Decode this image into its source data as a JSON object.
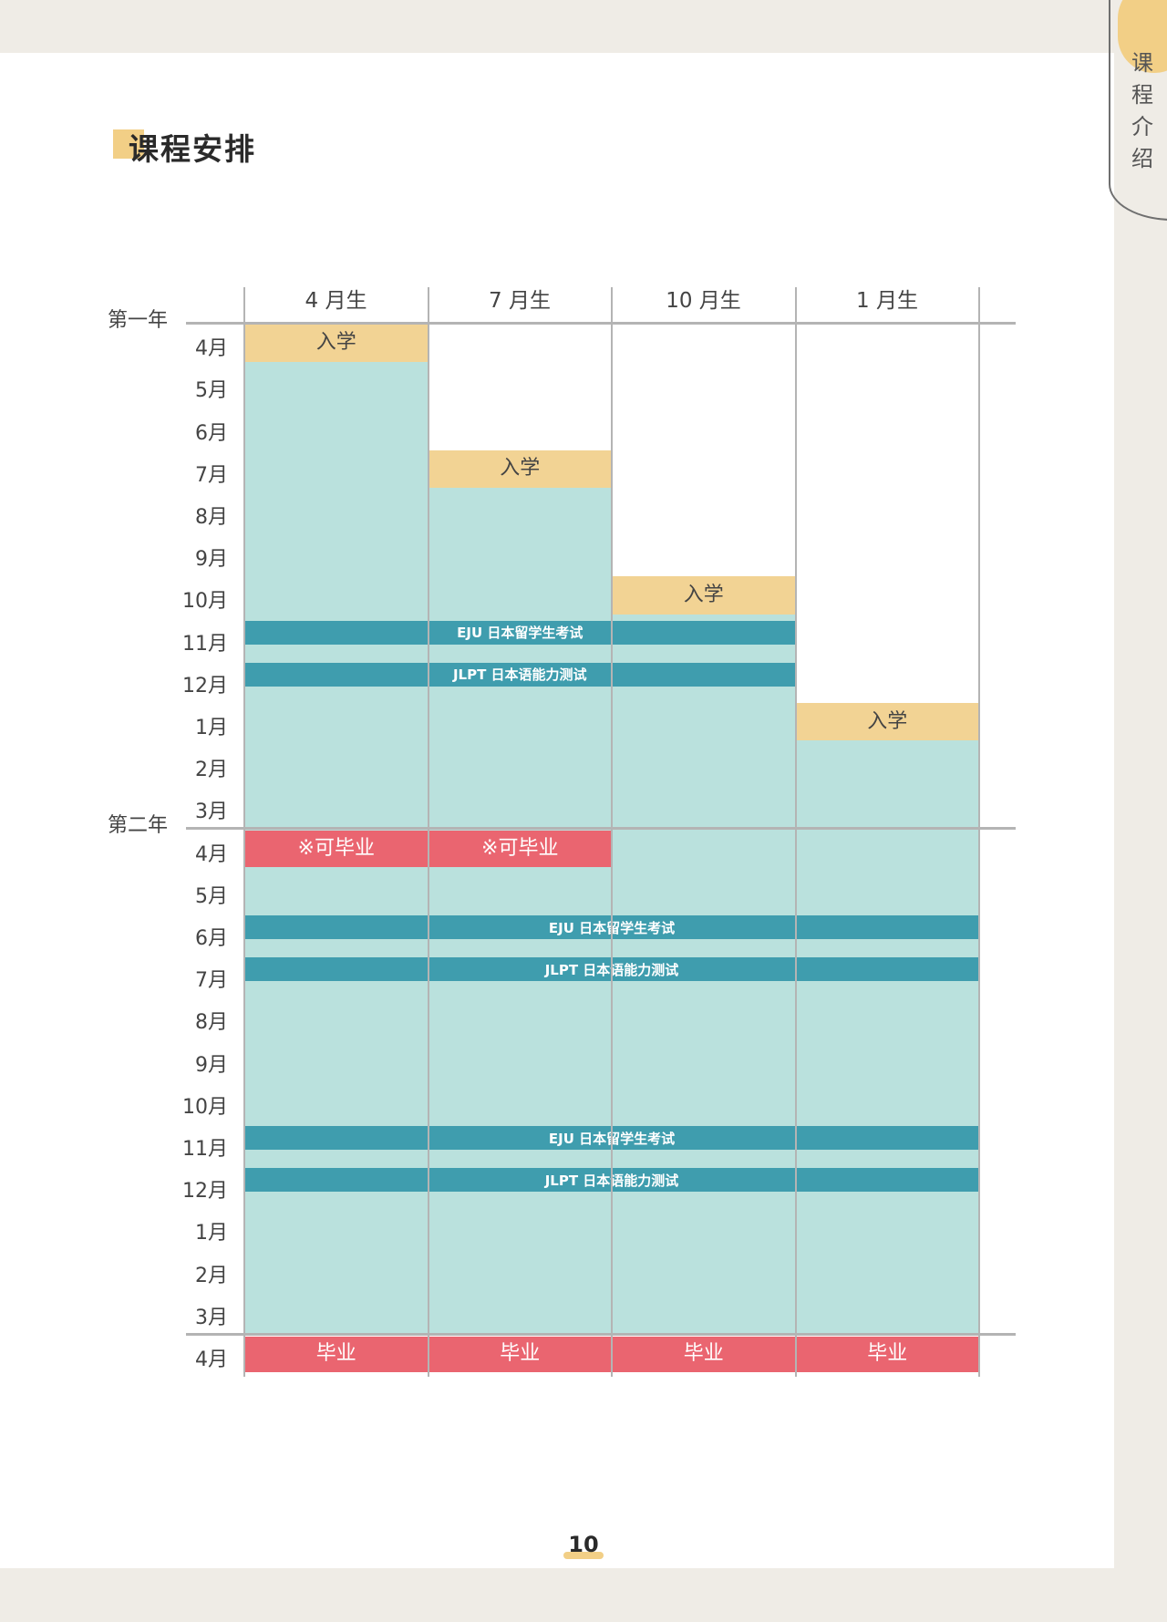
{
  "side_tab": {
    "label": "课程介绍"
  },
  "title": "课程安排",
  "columns": [
    "4 月生",
    "7 月生",
    "10 月生",
    "1 月生"
  ],
  "years": [
    "第一年",
    "第二年"
  ],
  "months": [
    "4月",
    "5月",
    "6月",
    "7月",
    "8月",
    "9月",
    "10月",
    "11月",
    "12月",
    "1月",
    "2月",
    "3月",
    "4月",
    "5月",
    "6月",
    "7月",
    "8月",
    "9月",
    "10月",
    "11月",
    "12月",
    "1月",
    "2月",
    "3月",
    "4月"
  ],
  "events": {
    "entry": [
      {
        "label": "入学",
        "column": 0,
        "month_index": 0
      },
      {
        "label": "入学",
        "column": 1,
        "month_index": 3
      },
      {
        "label": "入学",
        "column": 2,
        "month_index": 6
      },
      {
        "label": "入学",
        "column": 3,
        "month_index": 9
      }
    ],
    "early_graduation": [
      {
        "label": "※可毕业",
        "column": 0,
        "month_index": 12
      },
      {
        "label": "※可毕业",
        "column": 1,
        "month_index": 12
      }
    ],
    "graduation": [
      {
        "label": "毕业",
        "column": 0,
        "month_index": 24
      },
      {
        "label": "毕业",
        "column": 1,
        "month_index": 24
      },
      {
        "label": "毕业",
        "column": 2,
        "month_index": 24
      },
      {
        "label": "毕业",
        "column": 3,
        "month_index": 24
      }
    ],
    "exams": [
      {
        "label": "EJU 日本留学生考试",
        "month_index": 7,
        "columns": [
          0,
          2
        ]
      },
      {
        "label": "JLPT 日本语能力测试",
        "month_index": 8,
        "columns": [
          0,
          2
        ]
      },
      {
        "label": "EJU 日本留学生考试",
        "month_index": 14,
        "columns": [
          0,
          3
        ]
      },
      {
        "label": "JLPT 日本语能力测试",
        "month_index": 15,
        "columns": [
          0,
          3
        ]
      },
      {
        "label": "EJU 日本留学生考试",
        "month_index": 19,
        "columns": [
          0,
          3
        ]
      },
      {
        "label": "JLPT 日本语能力测试",
        "month_index": 20,
        "columns": [
          0,
          3
        ]
      }
    ]
  },
  "page_number": "10",
  "colors": {
    "entry": "#f2d394",
    "study": "#bae1dd",
    "exam": "#3f9dae",
    "graduation": "#ea6570",
    "accent": "#f2cf86"
  }
}
